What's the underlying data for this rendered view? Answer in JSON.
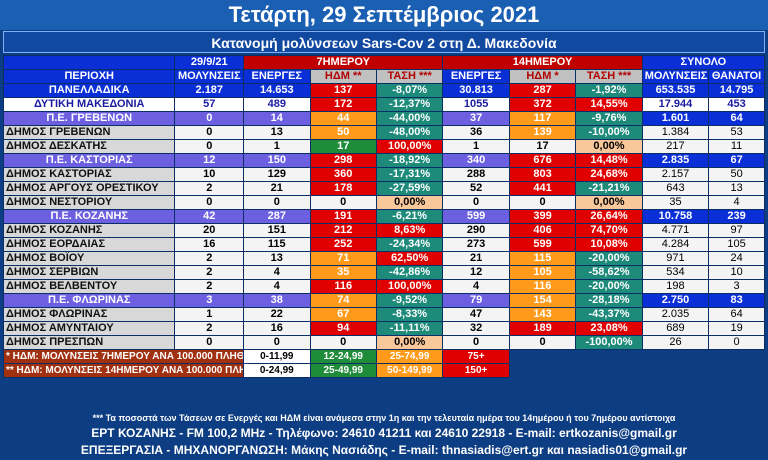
{
  "title": "Τετάρτη, 29 Σεπτέμβριος 2021",
  "subtitle": "Κατανομή μολύνσεων Sars-Cov 2 στη Δ. Μακεδονία",
  "header": {
    "date": "29/9/21",
    "period7": "7ΗΜΕΡΟΥ",
    "period14": "14ΗΜΕΡΟΥ",
    "total": "ΣΥΝΟΛΟ",
    "region": "ΠΕΡΙΟΧΗ",
    "infections": "ΜΟΛΥΝΣΕΙΣ",
    "active7": "ΕΝΕΡΓΕΣ",
    "idm7": "ΗΔΜ **",
    "trend7": "ΤΑΣΗ ***",
    "active14": "ΕΝΕΡΓΕΣ",
    "idm14": "ΗΔΜ *",
    "trend14": "ΤΑΣΗ ***",
    "total_inf": "ΜΟΛΥΝΣΕΙΣ",
    "deaths": "ΘΑΝΑΤΟΙ"
  },
  "rows": [
    {
      "type": "pan",
      "name": "ΠΑΝΕΛΛΑΔΙΚΑ",
      "inf": "2.187",
      "a7": "14.653",
      "h7": "137",
      "h7c": "c-red",
      "t7": "-8,07%",
      "t7c": "c-teal",
      "a14": "30.813",
      "h14": "287",
      "h14c": "c-red",
      "t14": "-1,92%",
      "t14c": "c-teal",
      "tot": "653.535",
      "dead": "14.795"
    },
    {
      "type": "dyt",
      "name": "ΔΥΤΙΚΗ ΜΑΚΕΔΟΝΙΑ",
      "inf": "57",
      "a7": "489",
      "h7": "172",
      "h7c": "c-red",
      "t7": "-12,37%",
      "t7c": "c-teal",
      "a14": "1055",
      "h14": "372",
      "h14c": "c-red",
      "t14": "14,55%",
      "t14c": "c-red",
      "tot": "17.944",
      "dead": "453"
    },
    {
      "type": "pe",
      "name": "Π.Ε. ΓΡΕΒΕΝΩΝ",
      "inf": "0",
      "a7": "14",
      "h7": "44",
      "h7c": "c-ora",
      "t7": "-44,00%",
      "t7c": "c-teal",
      "a14": "37",
      "h14": "117",
      "h14c": "c-ora",
      "t14": "-9,76%",
      "t14c": "c-teal",
      "tot": "1.601",
      "dead": "64"
    },
    {
      "type": "dimos",
      "name": "ΔΗΜΟΣ ΓΡΕΒΕΝΩΝ",
      "inf": "0",
      "a7": "13",
      "h7": "50",
      "h7c": "c-ora",
      "t7": "-48,00%",
      "t7c": "c-teal",
      "a14": "36",
      "h14": "139",
      "h14c": "c-ora",
      "t14": "-10,00%",
      "t14c": "c-teal",
      "tot": "1.384",
      "dead": "53"
    },
    {
      "type": "dimos",
      "name": "ΔΗΜΟΣ ΔΕΣΚΑΤΗΣ",
      "inf": "0",
      "a7": "1",
      "h7": "17",
      "h7c": "c-green",
      "t7": "100,00%",
      "t7c": "c-red",
      "a14": "1",
      "h14": "17",
      "h14c": "c-light",
      "t14": "0,00%",
      "t14c": "c-peach",
      "tot": "217",
      "dead": "11"
    },
    {
      "type": "pe",
      "name": "Π.Ε. ΚΑΣΤΟΡΙΑΣ",
      "inf": "12",
      "a7": "150",
      "h7": "298",
      "h7c": "c-red",
      "t7": "-18,92%",
      "t7c": "c-teal",
      "a14": "340",
      "h14": "676",
      "h14c": "c-red",
      "t14": "14,48%",
      "t14c": "c-red",
      "tot": "2.835",
      "dead": "67"
    },
    {
      "type": "dimos",
      "name": "ΔΗΜΟΣ ΚΑΣΤΟΡΙΑΣ",
      "inf": "10",
      "a7": "129",
      "h7": "360",
      "h7c": "c-red",
      "t7": "-17,31%",
      "t7c": "c-teal",
      "a14": "288",
      "h14": "803",
      "h14c": "c-red",
      "t14": "24,68%",
      "t14c": "c-red",
      "tot": "2.157",
      "dead": "50"
    },
    {
      "type": "dimos",
      "name": "ΔΗΜΟΣ ΑΡΓΟΥΣ ΟΡΕΣΤΙΚΟΥ",
      "inf": "2",
      "a7": "21",
      "h7": "178",
      "h7c": "c-red",
      "t7": "-27,59%",
      "t7c": "c-teal",
      "a14": "52",
      "h14": "441",
      "h14c": "c-red",
      "t14": "-21,21%",
      "t14c": "c-teal",
      "tot": "643",
      "dead": "13"
    },
    {
      "type": "dimos",
      "name": "ΔΗΜΟΣ ΝΕΣΤΟΡΙΟΥ",
      "inf": "0",
      "a7": "0",
      "h7": "0",
      "h7c": "c-light",
      "t7": "0,00%",
      "t7c": "c-peach",
      "a14": "0",
      "h14": "0",
      "h14c": "c-light",
      "t14": "0,00%",
      "t14c": "c-peach",
      "tot": "35",
      "dead": "4"
    },
    {
      "type": "pe",
      "name": "Π.Ε. ΚΟΖΑΝΗΣ",
      "inf": "42",
      "a7": "287",
      "h7": "191",
      "h7c": "c-red",
      "t7": "-6,21%",
      "t7c": "c-teal",
      "a14": "599",
      "h14": "399",
      "h14c": "c-red",
      "t14": "26,64%",
      "t14c": "c-red",
      "tot": "10.758",
      "dead": "239"
    },
    {
      "type": "dimos",
      "name": "ΔΗΜΟΣ ΚΟΖΑΝΗΣ",
      "inf": "20",
      "a7": "151",
      "h7": "212",
      "h7c": "c-red",
      "t7": "8,63%",
      "t7c": "c-red",
      "a14": "290",
      "h14": "406",
      "h14c": "c-red",
      "t14": "74,70%",
      "t14c": "c-red",
      "tot": "4.771",
      "dead": "97"
    },
    {
      "type": "dimos",
      "name": "ΔΗΜΟΣ ΕΟΡΔΑΙΑΣ",
      "inf": "16",
      "a7": "115",
      "h7": "252",
      "h7c": "c-red",
      "t7": "-24,34%",
      "t7c": "c-teal",
      "a14": "273",
      "h14": "599",
      "h14c": "c-red",
      "t14": "10,08%",
      "t14c": "c-red",
      "tot": "4.284",
      "dead": "105"
    },
    {
      "type": "dimos",
      "name": "ΔΗΜΟΣ ΒΟΪΟΥ",
      "inf": "2",
      "a7": "13",
      "h7": "71",
      "h7c": "c-ora",
      "t7": "62,50%",
      "t7c": "c-red",
      "a14": "21",
      "h14": "115",
      "h14c": "c-ora",
      "t14": "-20,00%",
      "t14c": "c-teal",
      "tot": "971",
      "dead": "24"
    },
    {
      "type": "dimos",
      "name": "ΔΗΜΟΣ ΣΕΡΒΙΩΝ",
      "inf": "2",
      "a7": "4",
      "h7": "35",
      "h7c": "c-ora",
      "t7": "-42,86%",
      "t7c": "c-teal",
      "a14": "12",
      "h14": "105",
      "h14c": "c-ora",
      "t14": "-58,62%",
      "t14c": "c-teal",
      "tot": "534",
      "dead": "10"
    },
    {
      "type": "dimos",
      "name": "ΔΗΜΟΣ ΒΕΛΒΕΝΤΟΥ",
      "inf": "2",
      "a7": "4",
      "h7": "116",
      "h7c": "c-red",
      "t7": "100,00%",
      "t7c": "c-red",
      "a14": "4",
      "h14": "116",
      "h14c": "c-ora",
      "t14": "-20,00%",
      "t14c": "c-teal",
      "tot": "198",
      "dead": "3"
    },
    {
      "type": "pe",
      "name": "Π.Ε. ΦΛΩΡΙΝΑΣ",
      "inf": "3",
      "a7": "38",
      "h7": "74",
      "h7c": "c-ora",
      "t7": "-9,52%",
      "t7c": "c-teal",
      "a14": "79",
      "h14": "154",
      "h14c": "c-ora",
      "t14": "-28,18%",
      "t14c": "c-teal",
      "tot": "2.750",
      "dead": "83"
    },
    {
      "type": "dimos",
      "name": "ΔΗΜΟΣ ΦΛΩΡΙΝΑΣ",
      "inf": "1",
      "a7": "22",
      "h7": "67",
      "h7c": "c-ora",
      "t7": "-8,33%",
      "t7c": "c-teal",
      "a14": "47",
      "h14": "143",
      "h14c": "c-ora",
      "t14": "-43,37%",
      "t14c": "c-teal",
      "tot": "2.035",
      "dead": "64"
    },
    {
      "type": "dimos",
      "name": "ΔΗΜΟΣ ΑΜΥΝΤΑΙΟΥ",
      "inf": "2",
      "a7": "16",
      "h7": "94",
      "h7c": "c-red",
      "t7": "-11,11%",
      "t7c": "c-teal",
      "a14": "32",
      "h14": "189",
      "h14c": "c-red",
      "t14": "23,08%",
      "t14c": "c-red",
      "tot": "689",
      "dead": "19"
    },
    {
      "type": "dimos",
      "name": "ΔΗΜΟΣ ΠΡΕΣΠΩΝ",
      "inf": "0",
      "a7": "0",
      "h7": "0",
      "h7c": "c-light",
      "t7": "0,00%",
      "t7c": "c-peach",
      "a14": "0",
      "h14": "0",
      "h14c": "c-light",
      "t14": "-100,00%",
      "t14c": "c-teal",
      "tot": "26",
      "dead": "0"
    }
  ],
  "legend": {
    "row1_label": "* ΗΔΜ: ΜΟΛΥΝΣΕΙΣ 7ΗΜΕΡΟΥ ΑΝΑ 100.000 ΠΛΗΘΥΣΜΟΥ",
    "row1_w": "0-11,99",
    "row1_g": "12-24,99",
    "row1_o": "25-74,99",
    "row1_r": "75+",
    "row2_label": "** ΗΔΜ: ΜΟΛΥΝΣΕΙΣ 14ΗΜΕΡΟΥ ΑΝΑ 100.000 ΠΛΗΘΥΣΜΟΥ",
    "row2_w": "0-24,99",
    "row2_g": "25-49,99",
    "row2_o": "50-149,99",
    "row2_r": "150+"
  },
  "footnote": "*** Τα ποσοστά των Τάσεων σε Ενεργές και ΗΔΜ είναι ανάμεσα στην 1η και την τελευταία ημέρα του 14ημέρου ή του 7ημέρου αντίστοιχα",
  "footer1": "ΕΡΤ ΚΟΖΑΝΗΣ - FM 100,2 MHz - Τηλέφωνο:  24610 41211 και 24610 22918 - E-mail: ertkozanis@gmail.gr",
  "footer2": "ΕΠΕΞΕΡΓΑΣΙΑ  -  ΜΗΧΑΝΟΡΓΑΝΩΣΗ: Μάκης Νασιάδης   -   E-mail: thnasiadis@ert.gr και nasiadis01@gmail.gr"
}
